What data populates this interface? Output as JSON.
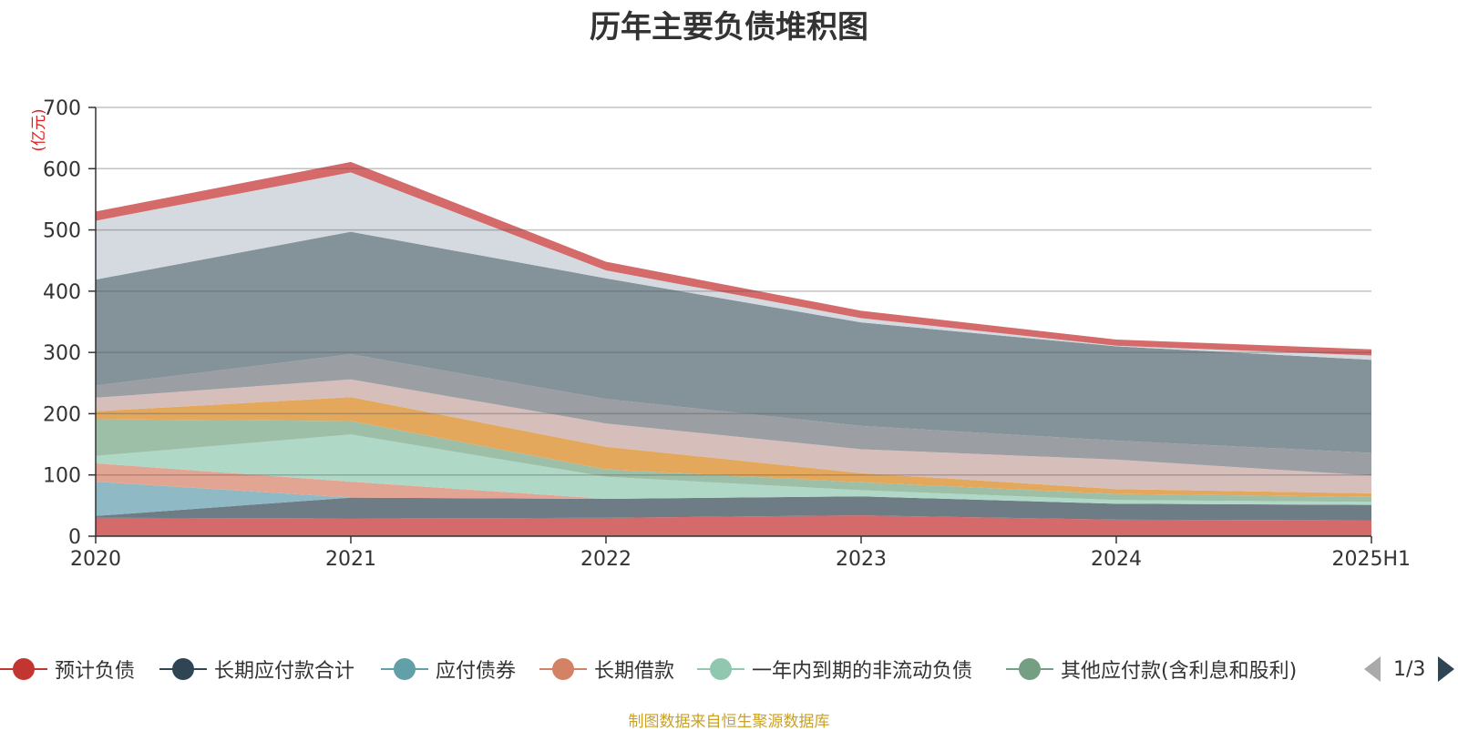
{
  "chart_data": {
    "type": "area",
    "stacked": true,
    "title": "历年主要负债堆积图",
    "unit_label": "(亿元)",
    "categories": [
      "2020",
      "2021",
      "2022",
      "2023",
      "2024",
      "2025H1"
    ],
    "ylim": [
      0,
      700
    ],
    "yticks": [
      0,
      100,
      200,
      300,
      400,
      500,
      600,
      700
    ],
    "grid": true,
    "legend_position": "bottom",
    "series": [
      {
        "name": "预计负债",
        "color": "#d46a6a",
        "values": [
          30,
          29,
          30,
          34,
          27,
          26
        ]
      },
      {
        "name": "长期应付款合计",
        "color": "#6e7c86",
        "values": [
          3,
          34,
          31,
          31,
          26,
          25
        ]
      },
      {
        "name": "应付债券",
        "color": "#8fbac5",
        "values": [
          56,
          0,
          0,
          0,
          0,
          0
        ]
      },
      {
        "name": "长期借款",
        "color": "#e3a593",
        "values": [
          30,
          26,
          0,
          0,
          0,
          0
        ]
      },
      {
        "name": "一年内到期的非流动负债",
        "color": "#b0d8c6",
        "values": [
          12,
          77,
          36,
          10,
          6,
          5
        ]
      },
      {
        "name": "其他应付款(含利息和股利)",
        "color": "#9dbfa8",
        "values": [
          60,
          22,
          12,
          13,
          10,
          8
        ]
      },
      {
        "series_hidden_label": "",
        "color": "#e3a85c",
        "values": [
          13,
          39,
          37,
          15,
          8,
          6
        ]
      },
      {
        "series_hidden_label": "",
        "color": "#d6bebb",
        "values": [
          22,
          29,
          38,
          39,
          48,
          29
        ]
      },
      {
        "series_hidden_label": "",
        "color": "#9b9ea3",
        "values": [
          20,
          41,
          40,
          38,
          31,
          37
        ]
      },
      {
        "series_hidden_label": "",
        "color": "#84939a",
        "values": [
          173,
          200,
          197,
          169,
          154,
          152
        ]
      },
      {
        "series_hidden_label": "",
        "color": "#d5dae0",
        "values": [
          96,
          97,
          13,
          7,
          1,
          7
        ]
      },
      {
        "series_hidden_label": "",
        "color": "#d46a6a",
        "values": [
          15,
          17,
          14,
          12,
          10,
          10
        ]
      }
    ]
  },
  "legend": {
    "items": [
      "预计负债",
      "长期应付款合计",
      "应付债券",
      "长期借款",
      "一年内到期的非流动负债",
      "其他应付款(含利息和股利)"
    ],
    "colors": [
      "#c23531",
      "#2f4554",
      "#61a0a8",
      "#d48265",
      "#91c7ae",
      "#749f83"
    ],
    "page": "1/3"
  },
  "source_note": "制图数据来自恒生聚源数据库"
}
